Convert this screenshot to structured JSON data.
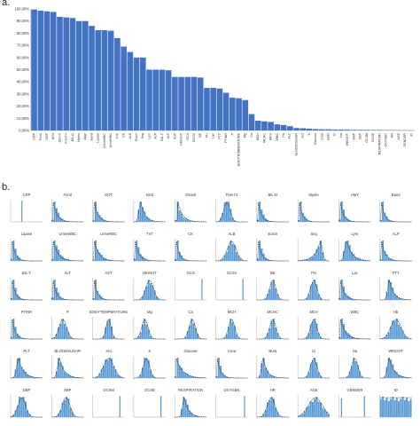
{
  "panel_labels": {
    "a": "a.",
    "b": "b."
  },
  "colors": {
    "bar": "#4472C4",
    "hist": "#5b9bd5",
    "curve": "#1a1a1a",
    "axis": "#999999"
  },
  "chart_data": [
    {
      "type": "bar",
      "title": "",
      "xlabel": "",
      "ylabel": "",
      "ylim": [
        0,
        100
      ],
      "yticks": [
        "0,00%",
        "10,00%",
        "20,00%",
        "30,00%",
        "40,00%",
        "50,00%",
        "60,00%",
        "70,00%",
        "80,00%",
        "90,00%",
        "100,00%"
      ],
      "grid": false,
      "categories": [
        "CRP",
        "Ferol",
        "GOT",
        "NH3",
        "Osmol",
        "FreeT4",
        "BIL-D",
        "Myelo",
        "AMY",
        "Band",
        "Lipase",
        "UrineWBC",
        "UrineRBC",
        "TnT",
        "CK",
        "ALB",
        "Eosin",
        "Seg",
        "Lym",
        "ALP",
        "BIL-T",
        "ALT",
        "AST",
        "HEIGHT",
        "GCS",
        "GCSV",
        "BE",
        "PH",
        "Lac",
        "PTT",
        "PTINR",
        "P",
        "BODYTEMPERATURE",
        "Mg",
        "Ca",
        "MCH",
        "MCHC",
        "MCV",
        "WBC",
        "Hb",
        "PLT",
        "BLOODSUGAR",
        "Hct",
        "K",
        "Glucose",
        "Crea",
        "BUN",
        "Cl",
        "Na",
        "WEIGHT",
        "DBP",
        "SBP",
        "GCSM",
        "GCSE",
        "RESPIRATION",
        "OXYGEN",
        "HR",
        "AGE",
        "GENDER",
        "ID"
      ],
      "values": [
        99.5,
        98.5,
        98.0,
        97.5,
        93.5,
        93.0,
        92.5,
        90.0,
        90.0,
        86.0,
        82.5,
        82.5,
        82.0,
        76.0,
        69.0,
        64.5,
        60.0,
        60.0,
        50.0,
        50.0,
        50.0,
        49.5,
        44.0,
        44.0,
        44.0,
        44.0,
        43.5,
        35.0,
        35.0,
        34.5,
        31.0,
        27.0,
        26.5,
        25.0,
        13.5,
        8.0,
        7.5,
        7.0,
        5.0,
        4.5,
        3.5,
        2.0,
        1.8,
        1.5,
        1.2,
        1.0,
        1.0,
        0.8,
        0.8,
        0.7,
        0.5,
        0.5,
        0.5,
        0.4,
        0.4,
        0.3,
        0.3,
        0.2,
        0.2,
        0.1
      ]
    },
    {
      "type": "histogram-grid",
      "title": "",
      "legend": "none",
      "panels": [
        {
          "label": "CRP",
          "shape": "spike",
          "center": 0.35,
          "width": 0.02
        },
        {
          "label": "Ferol",
          "shape": "decay",
          "center": 0.05,
          "width": 0.12
        },
        {
          "label": "GOT",
          "shape": "decay",
          "center": 0.05,
          "width": 0.12
        },
        {
          "label": "NH3",
          "shape": "skew",
          "center": 0.22,
          "width": 0.12
        },
        {
          "label": "Osmol",
          "shape": "decay",
          "center": 0.08,
          "width": 0.15
        },
        {
          "label": "FreeT4",
          "shape": "normal",
          "center": 0.35,
          "width": 0.1
        },
        {
          "label": "BIL-D",
          "shape": "decay",
          "center": 0.05,
          "width": 0.1
        },
        {
          "label": "Myelo",
          "shape": "decay",
          "center": 0.05,
          "width": 0.1
        },
        {
          "label": "AMY",
          "shape": "decay",
          "center": 0.05,
          "width": 0.1
        },
        {
          "label": "Band",
          "shape": "decay",
          "center": 0.05,
          "width": 0.1
        },
        {
          "label": "Lipase",
          "shape": "decay",
          "center": 0.05,
          "width": 0.1
        },
        {
          "label": "UrineWBC",
          "shape": "decay",
          "center": 0.05,
          "width": 0.15
        },
        {
          "label": "UrineRBC",
          "shape": "decay",
          "center": 0.05,
          "width": 0.15
        },
        {
          "label": "TnT",
          "shape": "decay",
          "center": 0.05,
          "width": 0.12
        },
        {
          "label": "CK",
          "shape": "decay",
          "center": 0.05,
          "width": 0.1
        },
        {
          "label": "ALB",
          "shape": "normal",
          "center": 0.5,
          "width": 0.14
        },
        {
          "label": "Eosin",
          "shape": "decay",
          "center": 0.05,
          "width": 0.1
        },
        {
          "label": "Seg",
          "shape": "skewleft",
          "center": 0.7,
          "width": 0.15
        },
        {
          "label": "Lym",
          "shape": "skew",
          "center": 0.25,
          "width": 0.15
        },
        {
          "label": "ALP",
          "shape": "decay",
          "center": 0.05,
          "width": 0.12
        },
        {
          "label": "BIL-T",
          "shape": "decay",
          "center": 0.05,
          "width": 0.1
        },
        {
          "label": "ALT",
          "shape": "decay",
          "center": 0.05,
          "width": 0.1
        },
        {
          "label": "AST",
          "shape": "decay",
          "center": 0.05,
          "width": 0.1
        },
        {
          "label": "HEIGHT",
          "shape": "normal",
          "center": 0.5,
          "width": 0.12
        },
        {
          "label": "GCS",
          "shape": "spike",
          "center": 0.85,
          "width": 0.02
        },
        {
          "label": "GCSV",
          "shape": "spike",
          "center": 0.85,
          "width": 0.02
        },
        {
          "label": "BE",
          "shape": "normal",
          "center": 0.5,
          "width": 0.1
        },
        {
          "label": "PH",
          "shape": "normal",
          "center": 0.5,
          "width": 0.1
        },
        {
          "label": "Lac",
          "shape": "decay",
          "center": 0.05,
          "width": 0.12
        },
        {
          "label": "PTT",
          "shape": "skew",
          "center": 0.3,
          "width": 0.12
        },
        {
          "label": "PTINR",
          "shape": "decay",
          "center": 0.05,
          "width": 0.1
        },
        {
          "label": "P",
          "shape": "normal",
          "center": 0.35,
          "width": 0.12
        },
        {
          "label": "BODYTEMPERATURE",
          "shape": "normal",
          "center": 0.5,
          "width": 0.08
        },
        {
          "label": "Mg",
          "shape": "normal",
          "center": 0.35,
          "width": 0.1
        },
        {
          "label": "Ca",
          "shape": "normal",
          "center": 0.55,
          "width": 0.1
        },
        {
          "label": "MCH",
          "shape": "normal",
          "center": 0.5,
          "width": 0.1
        },
        {
          "label": "MCHC",
          "shape": "normal",
          "center": 0.5,
          "width": 0.1
        },
        {
          "label": "MCV",
          "shape": "normal",
          "center": 0.5,
          "width": 0.1
        },
        {
          "label": "WBC",
          "shape": "decay",
          "center": 0.05,
          "width": 0.15
        },
        {
          "label": "Hb",
          "shape": "normal",
          "center": 0.5,
          "width": 0.16
        },
        {
          "label": "PLT",
          "shape": "skew",
          "center": 0.25,
          "width": 0.14
        },
        {
          "label": "BLOODSUGAR",
          "shape": "skew",
          "center": 0.25,
          "width": 0.14
        },
        {
          "label": "Hct",
          "shape": "normal",
          "center": 0.5,
          "width": 0.16
        },
        {
          "label": "K",
          "shape": "normal",
          "center": 0.4,
          "width": 0.1
        },
        {
          "label": "Glucose",
          "shape": "decay",
          "center": 0.05,
          "width": 0.2
        },
        {
          "label": "Crea",
          "shape": "decay",
          "center": 0.05,
          "width": 0.1
        },
        {
          "label": "BUN",
          "shape": "skew",
          "center": 0.2,
          "width": 0.12
        },
        {
          "label": "Cl",
          "shape": "normal",
          "center": 0.5,
          "width": 0.1
        },
        {
          "label": "Na",
          "shape": "normal",
          "center": 0.5,
          "width": 0.1
        },
        {
          "label": "WEIGHT",
          "shape": "skew",
          "center": 0.3,
          "width": 0.14
        },
        {
          "label": "DBP",
          "shape": "normal",
          "center": 0.35,
          "width": 0.12
        },
        {
          "label": "SBP",
          "shape": "normal",
          "center": 0.45,
          "width": 0.12
        },
        {
          "label": "GCSM",
          "shape": "spike",
          "center": 0.85,
          "width": 0.02
        },
        {
          "label": "GCSE",
          "shape": "spike",
          "center": 0.85,
          "width": 0.02
        },
        {
          "label": "RESPIRATION",
          "shape": "skew",
          "center": 0.3,
          "width": 0.12
        },
        {
          "label": "OXYGEN",
          "shape": "spike",
          "center": 0.9,
          "width": 0.02
        },
        {
          "label": "HR",
          "shape": "normal",
          "center": 0.45,
          "width": 0.12
        },
        {
          "label": "AGE",
          "shape": "normal",
          "center": 0.55,
          "width": 0.22
        },
        {
          "label": "GENDER",
          "shape": "binary",
          "center": 0.8,
          "width": 0.02
        },
        {
          "label": "ID",
          "shape": "uniform",
          "center": 0.5,
          "width": 0.5
        }
      ]
    }
  ]
}
